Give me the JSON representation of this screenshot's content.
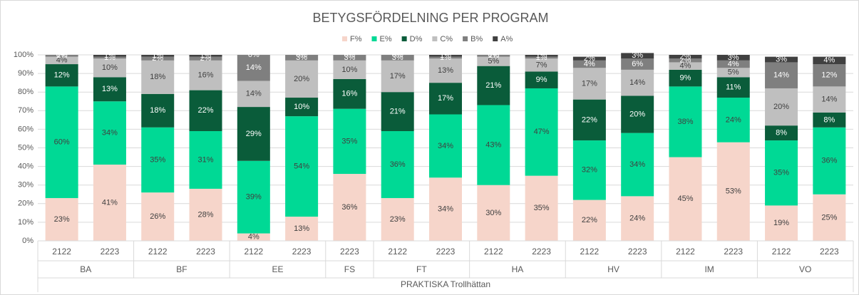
{
  "chart_data": {
    "type": "stacked_bar",
    "title": "BETYGSFÖRDELNING PER PROGRAM",
    "group_title": "PRAKTISKA Trollhättan",
    "legend": "top",
    "grid": true,
    "ylim": [
      0,
      100
    ],
    "yticks": [
      {
        "value": 0,
        "label": "0%"
      },
      {
        "value": 10,
        "label": "10%"
      },
      {
        "value": 20,
        "label": "20%"
      },
      {
        "value": 30,
        "label": "30%"
      },
      {
        "value": 40,
        "label": "40%"
      },
      {
        "value": 50,
        "label": "50%"
      },
      {
        "value": 60,
        "label": "60%"
      },
      {
        "value": 70,
        "label": "70%"
      },
      {
        "value": 80,
        "label": "80%"
      },
      {
        "value": 90,
        "label": "90%"
      },
      {
        "value": 100,
        "label": "100%"
      }
    ],
    "groups": [
      {
        "name": "BA",
        "categories": [
          "2122",
          "2223"
        ]
      },
      {
        "name": "BF",
        "categories": [
          "2122",
          "2223"
        ]
      },
      {
        "name": "EE",
        "categories": [
          "2122",
          "2223"
        ]
      },
      {
        "name": "FS",
        "categories": [
          "2223"
        ]
      },
      {
        "name": "FT",
        "categories": [
          "2122",
          "2223"
        ]
      },
      {
        "name": "HA",
        "categories": [
          "2122",
          "2223"
        ]
      },
      {
        "name": "HV",
        "categories": [
          "2122",
          "2223"
        ]
      },
      {
        "name": "IM",
        "categories": [
          "2122",
          "2223"
        ]
      },
      {
        "name": "VO",
        "categories": [
          "2122",
          "2223"
        ]
      }
    ],
    "series": [
      {
        "name": "F%",
        "color": "#f6d5ca",
        "label_color": "#404040",
        "values": [
          23,
          41,
          26,
          28,
          4,
          13,
          36,
          23,
          34,
          30,
          35,
          22,
          24,
          45,
          53,
          19,
          25
        ],
        "value_labels": [
          "23%",
          "41%",
          "26%",
          "28%",
          "4%",
          "13%",
          "36%",
          "23%",
          "34%",
          "30%",
          "35%",
          "22%",
          "24%",
          "45%",
          "53%",
          "19%",
          "25%"
        ]
      },
      {
        "name": "E%",
        "color": "#00d995",
        "label_color": "#404040",
        "values": [
          60,
          34,
          35,
          31,
          39,
          54,
          35,
          36,
          34,
          43,
          47,
          32,
          34,
          38,
          24,
          35,
          36
        ],
        "value_labels": [
          "60%",
          "34%",
          "35%",
          "31%",
          "39%",
          "54%",
          "35%",
          "36%",
          "34%",
          "43%",
          "47%",
          "32%",
          "34%",
          "38%",
          "24%",
          "35%",
          "36%"
        ]
      },
      {
        "name": "D%",
        "color": "#0a5c3a",
        "label_color": "#ffffff",
        "values": [
          12,
          13,
          18,
          22,
          29,
          10,
          16,
          21,
          17,
          21,
          9,
          22,
          20,
          9,
          11,
          8,
          8
        ],
        "value_labels": [
          "12%",
          "13%",
          "18%",
          "22%",
          "29%",
          "10%",
          "16%",
          "21%",
          "17%",
          "21%",
          "9%",
          "22%",
          "20%",
          "9%",
          "11%",
          "8%",
          "8%"
        ]
      },
      {
        "name": "C%",
        "color": "#bfbfbf",
        "label_color": "#404040",
        "values": [
          4,
          10,
          18,
          16,
          14,
          20,
          10,
          17,
          13,
          5,
          7,
          17,
          14,
          4,
          5,
          20,
          14
        ],
        "value_labels": [
          "4%",
          "10%",
          "18%",
          "16%",
          "14%",
          "20%",
          "10%",
          "17%",
          "13%",
          "5%",
          "7%",
          "17%",
          "14%",
          "4%",
          "5%",
          "20%",
          "14%"
        ]
      },
      {
        "name": "B%",
        "color": "#7f7f7f",
        "label_color": "#ffffff",
        "values": [
          1,
          1,
          2,
          2,
          14,
          3,
          3,
          3,
          1,
          1,
          1,
          4,
          6,
          2,
          4,
          14,
          12
        ],
        "value_labels": [
          "1%",
          "1%",
          "2%",
          "2%",
          "14%",
          "3%",
          "3%",
          "3%",
          "1%",
          "1%",
          "1%",
          "4%",
          "6%",
          "2%",
          "4%",
          "14%",
          "12%"
        ]
      },
      {
        "name": "A%",
        "color": "#404040",
        "label_color": "#ffffff",
        "values": [
          0,
          1,
          1,
          1,
          0,
          0,
          0,
          0,
          1,
          0,
          1,
          2,
          3,
          2,
          3,
          3,
          4
        ],
        "value_labels": [
          "0%",
          "1%",
          "1%",
          "1%",
          "0%",
          "0%",
          "0%",
          "0%",
          "1%",
          "0%",
          "1%",
          "2%",
          "3%",
          "2%",
          "3%",
          "3%",
          "4%"
        ]
      }
    ]
  }
}
